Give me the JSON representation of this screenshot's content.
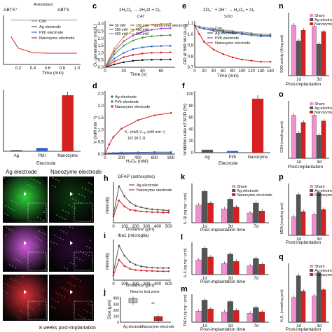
{
  "panels": {
    "a": {
      "eq_left": "ABTS⁺˙",
      "eq_arrow": "Antioxidant",
      "eq_right": "ABTS",
      "xlabel": "Time (min)",
      "xticks": [
        "0.2",
        "0.4",
        "0.6",
        "0.8",
        "1.0"
      ],
      "legend": [
        "Con",
        "Ag electrode",
        "Pt/Ir electrode",
        "Nanozyme electrode"
      ]
    },
    "b": {
      "categories": [
        "Ag",
        "Pt/Ir",
        "Nanozyme"
      ],
      "xlabel": "Electrode",
      "values": [
        0.02,
        0.06,
        1.0
      ]
    },
    "c": {
      "label": "c",
      "eq": "2H₂O₂ → 2H₂O + O₂",
      "eq_tag": "CAT",
      "ylabel": "O₂ generation (mg/L)",
      "xlabel": "Time (s)",
      "yticks": [
        "0.0",
        "0.5",
        "1.0",
        "1.5",
        "2.0",
        "2.5",
        "3.0"
      ],
      "xticks": [
        "0",
        "20",
        "40",
        "60"
      ],
      "legend_left": [
        "50 mM",
        "200 mM",
        "600 mM"
      ],
      "legend_right": [
        "100 mM",
        "400 mM",
        "800 mM"
      ],
      "tag": "Nanozyme electrode"
    },
    "d": {
      "label": "d",
      "ylabel": "V (mM min⁻¹)",
      "xlabel": "H₂O₂ (mM)",
      "yticks": [
        "0.0",
        "0.5",
        "1.0",
        "1.5",
        "2.0",
        "2.5"
      ],
      "xticks": [
        "0",
        "200",
        "400",
        "600",
        "800"
      ],
      "legend": [
        "Ag electrode",
        "Pt/Ir electrode",
        "Nanozyme electrode"
      ],
      "km_head": "Kₘ (mM)  Vₘₐₓ (mM min⁻¹)",
      "km_vals": "197.99        2.11"
    },
    "e": {
      "label": "e",
      "eq": "2O₂⁻ + 2H⁺ → H₂O₂ + O₂",
      "eq_tag": "SOD",
      "ylabel": "OD at 560 nm (a.u.)",
      "xlabel": "Time (min)",
      "yticks": [
        "0.7",
        "0.8",
        "0.9",
        "1.0",
        "1.1"
      ],
      "xticks": [
        "0",
        "20",
        "40",
        "60",
        "80",
        "100",
        "120",
        "140",
        "160"
      ],
      "legend": [
        "Con",
        "Ag electrode",
        "Pt/Ir electrode",
        "Nanozyme electrode"
      ]
    },
    "f": {
      "label": "f",
      "ylabel": "Inhibition rate of SOD (%)",
      "xlabel": "Electrode",
      "yticks": [
        "0",
        "20",
        "40",
        "60",
        "80",
        "100"
      ],
      "categories": [
        "Ag",
        "Pt/Ir",
        "Nanozyme"
      ]
    },
    "g": {
      "left_title": "Ag electrode",
      "right_title": "Nanozyme electrode",
      "caption": "8 weeks post-implantation"
    },
    "h": {
      "label": "h",
      "title": "GFAP (astrocytes)",
      "ylabel": "Intensity",
      "xlabel": "Distance (μm)",
      "xticks": [
        "0",
        "100",
        "200",
        "300",
        "400",
        "500"
      ],
      "legend": [
        "Ag electrode",
        "Nanozyme electrode"
      ]
    },
    "i": {
      "label": "i",
      "title": "Iba1 (microglia)",
      "ylabel": "Intensity",
      "xlabel": "Distance (μm)",
      "xticks": [
        "0",
        "100",
        "200",
        "300",
        "400",
        "500"
      ]
    },
    "j": {
      "label": "j",
      "title": "Neuron lost zone",
      "ylabel": "Size (μm)",
      "sig": "**",
      "yticks": [
        "0",
        "100",
        "200",
        "300",
        "400"
      ],
      "categories": [
        "Ag electrode",
        "Nanozyme electrode"
      ]
    },
    "k": {
      "label": "k",
      "ylabel": "IL-1β (ng mg⁻¹ prot)",
      "xlabel": "Post-implantation time",
      "groups": [
        "1d",
        "3d",
        "7d"
      ],
      "legend": [
        "Sham",
        "Ag electrode",
        "Nanozyme electrode"
      ]
    },
    "l": {
      "label": "l",
      "ylabel": "IL-6 (ng mg⁻¹ prot)",
      "xlabel": "Post-implantation time",
      "groups": [
        "1d",
        "3d",
        "7d"
      ]
    },
    "m": {
      "label": "m",
      "ylabel": "TNFα (ng mg⁻¹ prot)",
      "xlabel": "Post-implantation time",
      "groups": [
        "1d",
        "3d",
        "7d"
      ]
    },
    "n": {
      "label": "n",
      "ylabel": "SOD activity (U/mg prot)",
      "xlabel": "Post-implantation",
      "groups": [
        "1d",
        "3d"
      ],
      "legend": [
        "Sham",
        "Ag electrode",
        "Nanozyme"
      ]
    },
    "o": {
      "label": "o",
      "ylabel": "GSH (nmol/mg prot)",
      "xlabel": "Post-implantation",
      "groups": [
        "1d",
        "3d"
      ],
      "legend": [
        "Sham",
        "Ag electrode",
        "Nanozyme"
      ]
    },
    "p": {
      "label": "p",
      "ylabel": "MDA (nmol/mg prot)",
      "xlabel": "Post-implantation",
      "groups": [
        "1d",
        "3d"
      ],
      "legend": [
        "Sham",
        "Ag electrode",
        "Nanozyme"
      ]
    },
    "q": {
      "label": "q",
      "ylabel": "H₂O₂ (mmol/mg prot)",
      "xlabel": "Post-implantation",
      "groups": [
        "1d",
        "3d"
      ],
      "legend": [
        "Sham",
        "Ag electrode",
        "Nanozyme"
      ]
    }
  },
  "colors": {
    "sham": "#f08fd0",
    "ag": "#555555",
    "pt": "#3a66c8",
    "nano": "#d42020",
    "con": "#999999"
  },
  "chart_data": [
    {
      "panel": "a",
      "type": "line",
      "x": [
        0.1,
        0.2,
        0.4,
        0.6,
        0.8,
        1.0
      ],
      "series": [
        {
          "name": "Con",
          "values": [
            0.95,
            0.95,
            0.95,
            0.95,
            0.95,
            0.95
          ]
        },
        {
          "name": "Nanozyme electrode",
          "values": [
            0.6,
            0.35,
            0.25,
            0.24,
            0.24,
            0.24
          ]
        }
      ]
    },
    {
      "panel": "b",
      "type": "bar",
      "categories": [
        "Ag",
        "Pt/Ir",
        "Nanozyme"
      ],
      "values": [
        0.02,
        0.06,
        1.0
      ]
    },
    {
      "panel": "c",
      "type": "line",
      "x": [
        0,
        10,
        20,
        30,
        40,
        50,
        60,
        70
      ],
      "series": [
        {
          "name": "50 mM",
          "values": [
            0,
            0.2,
            0.35,
            0.45,
            0.5,
            0.52,
            0.53,
            0.54
          ]
        },
        {
          "name": "100 mM",
          "values": [
            0,
            0.4,
            0.7,
            0.85,
            0.95,
            1.0,
            1.02,
            1.03
          ]
        },
        {
          "name": "200 mM",
          "values": [
            0,
            0.6,
            1.0,
            1.25,
            1.38,
            1.44,
            1.47,
            1.48
          ]
        },
        {
          "name": "400 mM",
          "values": [
            0,
            0.9,
            1.5,
            1.85,
            2.05,
            2.15,
            2.2,
            2.22
          ]
        },
        {
          "name": "600 mM",
          "values": [
            0,
            1.1,
            1.8,
            2.2,
            2.45,
            2.6,
            2.68,
            2.7
          ]
        },
        {
          "name": "800 mM",
          "values": [
            0,
            1.3,
            2.1,
            2.55,
            2.8,
            2.95,
            3.0,
            3.02
          ]
        }
      ]
    },
    {
      "panel": "d",
      "type": "line",
      "x": [
        0,
        50,
        100,
        200,
        400,
        600,
        800
      ],
      "series": [
        {
          "name": "Ag electrode",
          "values": [
            0.02,
            0.03,
            0.03,
            0.03,
            0.04,
            0.04,
            0.04
          ]
        },
        {
          "name": "Pt/Ir electrode",
          "values": [
            0.02,
            0.04,
            0.05,
            0.06,
            0.07,
            0.08,
            0.08
          ]
        },
        {
          "name": "Nanozyme electrode",
          "values": [
            0,
            0.4,
            0.7,
            1.05,
            1.4,
            1.6,
            1.7
          ]
        }
      ]
    },
    {
      "panel": "e",
      "type": "line",
      "x": [
        0,
        10,
        20,
        40,
        60,
        80,
        100,
        120,
        140,
        160
      ],
      "series": [
        {
          "name": "Con",
          "values": [
            1.08,
            1.07,
            1.06,
            1.05,
            1.04,
            1.03,
            1.02,
            1.01,
            1.0,
            1.0
          ]
        },
        {
          "name": "Ag electrode",
          "values": [
            1.08,
            1.06,
            1.05,
            1.04,
            1.03,
            1.02,
            1.01,
            1.0,
            0.99,
            0.99
          ]
        },
        {
          "name": "Pt/Ir electrode",
          "values": [
            1.08,
            1.06,
            1.05,
            1.03,
            1.02,
            1.01,
            1.0,
            0.99,
            0.98,
            0.98
          ]
        },
        {
          "name": "Nanozyme electrode",
          "values": [
            1.08,
            1.0,
            0.93,
            0.86,
            0.82,
            0.79,
            0.77,
            0.76,
            0.75,
            0.75
          ]
        }
      ]
    },
    {
      "panel": "f",
      "type": "bar",
      "categories": [
        "Ag",
        "Pt/Ir",
        "Nanozyme"
      ],
      "values": [
        5,
        3,
        92
      ]
    },
    {
      "panel": "h",
      "type": "line",
      "x": [
        0,
        50,
        100,
        150,
        200,
        250,
        300,
        350,
        400,
        450,
        500
      ],
      "series": [
        {
          "name": "Ag electrode",
          "values": [
            0.2,
            0.9,
            0.65,
            0.5,
            0.42,
            0.38,
            0.35,
            0.33,
            0.32,
            0.31,
            0.3
          ]
        },
        {
          "name": "Nanozyme electrode",
          "values": [
            0.15,
            0.55,
            0.4,
            0.32,
            0.3,
            0.28,
            0.27,
            0.26,
            0.26,
            0.25,
            0.25
          ]
        }
      ]
    },
    {
      "panel": "i",
      "type": "line",
      "x": [
        0,
        50,
        100,
        150,
        200,
        250,
        300,
        350,
        400,
        450,
        500
      ],
      "series": [
        {
          "name": "Ag electrode",
          "values": [
            0.2,
            0.85,
            0.6,
            0.45,
            0.38,
            0.34,
            0.32,
            0.31,
            0.3,
            0.3,
            0.3
          ]
        },
        {
          "name": "Nanozyme electrode",
          "values": [
            0.12,
            0.5,
            0.35,
            0.28,
            0.25,
            0.24,
            0.23,
            0.23,
            0.22,
            0.22,
            0.22
          ]
        }
      ]
    },
    {
      "panel": "j",
      "type": "bar",
      "categories": [
        "Ag electrode",
        "Nanozyme electrode"
      ],
      "values": [
        360,
        60
      ]
    },
    {
      "panel": "k",
      "type": "bar",
      "categories": [
        "1d",
        "3d",
        "7d"
      ],
      "series": [
        {
          "name": "Sham",
          "values": [
            18,
            14,
            10
          ]
        },
        {
          "name": "Ag electrode",
          "values": [
            32,
            24,
            20
          ]
        },
        {
          "name": "Nanozyme electrode",
          "values": [
            20,
            16,
            12
          ]
        }
      ]
    },
    {
      "panel": "l",
      "type": "bar",
      "categories": [
        "1d",
        "3d",
        "7d"
      ],
      "series": [
        {
          "name": "Sham",
          "values": [
            20,
            15,
            12
          ]
        },
        {
          "name": "Ag electrode",
          "values": [
            36,
            28,
            22
          ]
        },
        {
          "name": "Nanozyme electrode",
          "values": [
            24,
            18,
            14
          ]
        }
      ]
    },
    {
      "panel": "m",
      "type": "bar",
      "categories": [
        "1d",
        "3d",
        "7d"
      ],
      "series": [
        {
          "name": "Sham",
          "values": [
            15,
            14,
            12
          ]
        },
        {
          "name": "Ag electrode",
          "values": [
            30,
            28,
            20
          ]
        },
        {
          "name": "Nanozyme electrode",
          "values": [
            18,
            16,
            14
          ]
        }
      ]
    },
    {
      "panel": "n",
      "type": "bar",
      "categories": [
        "1d",
        "3d"
      ],
      "series": [
        {
          "name": "Sham",
          "values": [
            80,
            78
          ]
        },
        {
          "name": "Ag electrode",
          "values": [
            55,
            50
          ]
        },
        {
          "name": "Nanozyme",
          "values": [
            72,
            70
          ]
        }
      ]
    },
    {
      "panel": "o",
      "type": "bar",
      "categories": [
        "1d",
        "3d"
      ],
      "series": [
        {
          "name": "Sham",
          "values": [
            6,
            6
          ]
        },
        {
          "name": "Ag electrode",
          "values": [
            3.5,
            3.2
          ]
        },
        {
          "name": "Nanozyme",
          "values": [
            5,
            5.2
          ]
        }
      ]
    },
    {
      "panel": "p",
      "type": "bar",
      "categories": [
        "1d",
        "3d"
      ],
      "series": [
        {
          "name": "Sham",
          "values": [
            2.5,
            2.8
          ]
        },
        {
          "name": "Ag electrode",
          "values": [
            5.5,
            5.8
          ]
        },
        {
          "name": "Nanozyme",
          "values": [
            3.2,
            3.5
          ]
        }
      ]
    },
    {
      "panel": "q",
      "type": "bar",
      "categories": [
        "1d",
        "3d"
      ],
      "series": [
        {
          "name": "Sham",
          "values": [
            80,
            85
          ]
        },
        {
          "name": "Ag electrode",
          "values": [
            150,
            160
          ]
        },
        {
          "name": "Nanozyme",
          "values": [
            100,
            105
          ]
        }
      ]
    }
  ]
}
